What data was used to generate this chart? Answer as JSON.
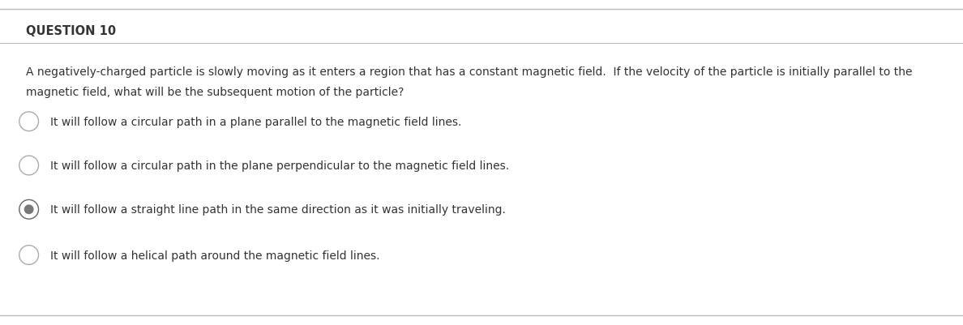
{
  "title": "QUESTION 10",
  "question_line1": "A negatively-charged particle is slowly moving as it enters a region that has a constant magnetic field.  If the velocity of the particle is initially parallel to the",
  "question_line2": "magnetic field, what will be the subsequent motion of the particle?",
  "options": [
    "It will follow a circular path in a plane parallel to the magnetic field lines.",
    "It will follow a circular path in the plane perpendicular to the magnetic field lines.",
    "It will follow a straight line path in the same direction as it was initially traveling.",
    "It will follow a helical path around the magnetic field lines."
  ],
  "selected_index": 2,
  "bg_color": "#ffffff",
  "title_fontsize": 10.5,
  "question_fontsize": 10.0,
  "option_fontsize": 10.0,
  "text_color": "#333333",
  "border_color": "#bbbbbb",
  "radio_empty_edge": "#aaaaaa",
  "radio_selected_edge": "#666666",
  "radio_selected_fill": "#777777"
}
